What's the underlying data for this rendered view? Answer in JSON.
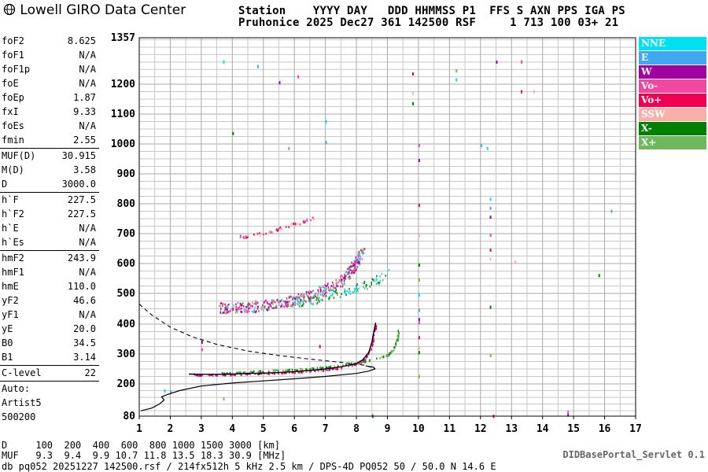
{
  "header": {
    "app_title": "Lowell GIRO Data Center",
    "line1": "Station    YYYY DAY   DDD HHMMSS P1  FFS S AXN PPS IGA PS",
    "line2": "Pruhonice 2025 Dec27 361 142500 RSF     1 713 100 03+ 21"
  },
  "params_groups": [
    [
      {
        "name": "foF2",
        "value": "8.625"
      },
      {
        "name": "foF1",
        "value": "N/A"
      },
      {
        "name": "foF1p",
        "value": "N/A"
      },
      {
        "name": "foE",
        "value": "N/A"
      },
      {
        "name": "foEp",
        "value": "1.87"
      },
      {
        "name": "fxI",
        "value": "9.33"
      },
      {
        "name": "foEs",
        "value": "N/A"
      },
      {
        "name": "fmin",
        "value": "2.55"
      }
    ],
    [
      {
        "name": "MUF(D)",
        "value": "30.915"
      },
      {
        "name": "M(D)",
        "value": "3.58"
      },
      {
        "name": "D",
        "value": "3000.0"
      }
    ],
    [
      {
        "name": "h`F",
        "value": "227.5"
      },
      {
        "name": "h`F2",
        "value": "227.5"
      },
      {
        "name": "h`E",
        "value": "N/A"
      },
      {
        "name": "h`Es",
        "value": "N/A"
      }
    ],
    [
      {
        "name": "hmF2",
        "value": "243.9"
      },
      {
        "name": "hmF1",
        "value": "N/A"
      },
      {
        "name": "hmE",
        "value": "110.0"
      },
      {
        "name": "yF2",
        "value": "46.6"
      },
      {
        "name": "yF1",
        "value": "N/A"
      },
      {
        "name": "yE",
        "value": "20.0"
      },
      {
        "name": "B0",
        "value": "34.5"
      },
      {
        "name": "B1",
        "value": "3.14"
      }
    ],
    [
      {
        "name": "C-level",
        "value": "22"
      }
    ]
  ],
  "auto_lines": [
    "Auto:",
    "Artist5",
    "500200"
  ],
  "legend": [
    {
      "label": "NNE",
      "color": "#00e0f0"
    },
    {
      "label": "E",
      "color": "#40a8f0"
    },
    {
      "label": "W",
      "color": "#a000a0"
    },
    {
      "label": "Vo-",
      "color": "#f048a0"
    },
    {
      "label": "Vo+",
      "color": "#f00050"
    },
    {
      "label": "SSW",
      "color": "#f8b0a8"
    },
    {
      "label": "X-",
      "color": "#008000"
    },
    {
      "label": "X+",
      "color": "#70b860"
    }
  ],
  "footer": {
    "d_line": "D     100  200  400  600  800 1000 1500 3000 [km]",
    "muf_line": "MUF   9.3  9.4  9.9 10.7 11.8 13.5 18.3 30.9 [MHz]",
    "file_line": "db pq052 20251227 142500.rsf / 214fx512h 5 kHz 2.5 km / DPS-4D PQ052 50 / 50.0 N 14.6 E",
    "servlet": "DIDBasePortal_Servlet 0.1"
  },
  "chart_data": {
    "type": "scatter",
    "xlim": [
      1,
      17
    ],
    "ylim": [
      80,
      1357
    ],
    "x_ticks": [
      "1",
      "2",
      "3",
      "4",
      "5",
      "6",
      "7",
      "8",
      "9",
      "10",
      "11",
      "12",
      "13",
      "14",
      "15",
      "16",
      "17"
    ],
    "y_ticks": [
      "80",
      "200",
      "300",
      "400",
      "500",
      "600",
      "700",
      "800",
      "900",
      "1000",
      "1100",
      "1200",
      "1357"
    ],
    "y_tick_values": [
      80,
      200,
      300,
      400,
      500,
      600,
      700,
      800,
      900,
      1000,
      1100,
      1200,
      1357
    ],
    "grid": true,
    "traces": {
      "f2_trace": [
        [
          2.6,
          233
        ],
        [
          3.0,
          232
        ],
        [
          3.5,
          232
        ],
        [
          4.0,
          233
        ],
        [
          4.5,
          235
        ],
        [
          5.0,
          236
        ],
        [
          5.5,
          238
        ],
        [
          6.0,
          241
        ],
        [
          6.5,
          245
        ],
        [
          7.0,
          250
        ],
        [
          7.5,
          257
        ],
        [
          8.0,
          268
        ],
        [
          8.2,
          280
        ],
        [
          8.4,
          305
        ],
        [
          8.5,
          340
        ],
        [
          8.58,
          385
        ],
        [
          8.62,
          405
        ]
      ],
      "profile_solid": [
        [
          1.05,
          100
        ],
        [
          1.4,
          110
        ],
        [
          1.65,
          125
        ],
        [
          1.8,
          140
        ],
        [
          1.72,
          152
        ],
        [
          1.9,
          160
        ],
        [
          2.3,
          175
        ],
        [
          3.0,
          192
        ],
        [
          4.0,
          203
        ],
        [
          5.0,
          210
        ],
        [
          6.0,
          217
        ],
        [
          7.0,
          225
        ],
        [
          8.0,
          235
        ],
        [
          8.4,
          243
        ],
        [
          8.6,
          250
        ],
        [
          8.55,
          256
        ],
        [
          8.3,
          260
        ]
      ],
      "profile_dashed": [
        [
          1.0,
          465
        ],
        [
          1.4,
          430
        ],
        [
          2.0,
          390
        ],
        [
          2.7,
          358
        ],
        [
          3.5,
          332
        ],
        [
          4.5,
          310
        ],
        [
          5.5,
          295
        ],
        [
          6.5,
          283
        ],
        [
          7.5,
          272
        ],
        [
          8.3,
          262
        ],
        [
          8.6,
          250
        ]
      ],
      "o_dots": [
        [
          2.7,
          233
        ],
        [
          3.2,
          232
        ],
        [
          3.7,
          233
        ],
        [
          4.2,
          235
        ],
        [
          4.7,
          237
        ],
        [
          5.2,
          238
        ],
        [
          5.7,
          240
        ],
        [
          6.2,
          243
        ],
        [
          6.7,
          247
        ],
        [
          7.2,
          252
        ],
        [
          7.7,
          260
        ],
        [
          8.1,
          272
        ],
        [
          8.3,
          290
        ],
        [
          8.45,
          320
        ],
        [
          8.55,
          360
        ],
        [
          8.62,
          400
        ]
      ],
      "x_dots": [
        [
          3.6,
          237
        ],
        [
          4.1,
          240
        ],
        [
          4.6,
          243
        ],
        [
          5.1,
          246
        ],
        [
          5.6,
          248
        ],
        [
          6.1,
          251
        ],
        [
          6.6,
          255
        ],
        [
          7.1,
          260
        ],
        [
          7.6,
          266
        ],
        [
          8.1,
          276
        ],
        [
          8.6,
          285
        ],
        [
          9.0,
          298
        ],
        [
          9.2,
          320
        ],
        [
          9.3,
          350
        ],
        [
          9.35,
          380
        ]
      ],
      "f2_second": [
        [
          3.6,
          455
        ],
        [
          4.0,
          455
        ],
        [
          4.5,
          458
        ],
        [
          5.0,
          462
        ],
        [
          5.5,
          470
        ],
        [
          6.0,
          480
        ],
        [
          6.5,
          495
        ],
        [
          7.0,
          515
        ],
        [
          7.5,
          545
        ],
        [
          7.8,
          575
        ],
        [
          8.0,
          610
        ],
        [
          8.2,
          650
        ]
      ],
      "f2_second_x": [
        [
          6.0,
          470
        ],
        [
          6.5,
          480
        ],
        [
          7.0,
          495
        ],
        [
          7.5,
          505
        ],
        [
          8.0,
          520
        ],
        [
          8.5,
          540
        ],
        [
          9.0,
          570
        ]
      ],
      "f2_third": [
        [
          4.2,
          690
        ],
        [
          4.7,
          698
        ],
        [
          5.2,
          710
        ],
        [
          5.7,
          725
        ],
        [
          6.2,
          740
        ],
        [
          6.6,
          755
        ]
      ],
      "noise_points": [
        [
          3.7,
          1280
        ],
        [
          4.8,
          1265
        ],
        [
          5.5,
          1210
        ],
        [
          6.1,
          1230
        ],
        [
          9.8,
          1240
        ],
        [
          9.8,
          1175
        ],
        [
          9.8,
          1140
        ],
        [
          11.2,
          1250
        ],
        [
          11.2,
          1220
        ],
        [
          12.0,
          1000
        ],
        [
          12.5,
          1280
        ],
        [
          13.3,
          1280
        ],
        [
          13.3,
          1180
        ],
        [
          13.7,
          1180
        ],
        [
          4.0,
          1040
        ],
        [
          5.8,
          990
        ],
        [
          7.0,
          1080
        ],
        [
          7.0,
          1010
        ],
        [
          10.0,
          950
        ],
        [
          10.0,
          1000
        ],
        [
          10.0,
          800
        ],
        [
          10.0,
          700
        ],
        [
          10.0,
          600
        ],
        [
          10.0,
          550
        ],
        [
          10.0,
          500
        ],
        [
          10.0,
          450
        ],
        [
          10.0,
          420
        ],
        [
          10.0,
          410
        ],
        [
          10.0,
          360
        ],
        [
          10.0,
          325
        ],
        [
          10.0,
          310
        ],
        [
          10.0,
          230
        ],
        [
          12.3,
          820
        ],
        [
          12.3,
          790
        ],
        [
          12.3,
          760
        ],
        [
          12.3,
          700
        ],
        [
          12.3,
          650
        ],
        [
          12.3,
          620
        ],
        [
          12.3,
          460
        ],
        [
          12.3,
          300
        ],
        [
          12.2,
          990
        ],
        [
          16.2,
          780
        ],
        [
          14.8,
          90
        ],
        [
          14.8,
          100
        ],
        [
          12.4,
          85
        ],
        [
          8.5,
          90
        ],
        [
          8.5,
          85
        ],
        [
          3.7,
          150
        ],
        [
          1.8,
          180
        ],
        [
          2.0,
          175
        ],
        [
          3.0,
          345
        ],
        [
          3.0,
          320
        ],
        [
          6.8,
          330
        ],
        [
          13.1,
          610
        ],
        [
          15.8,
          565
        ]
      ]
    }
  }
}
